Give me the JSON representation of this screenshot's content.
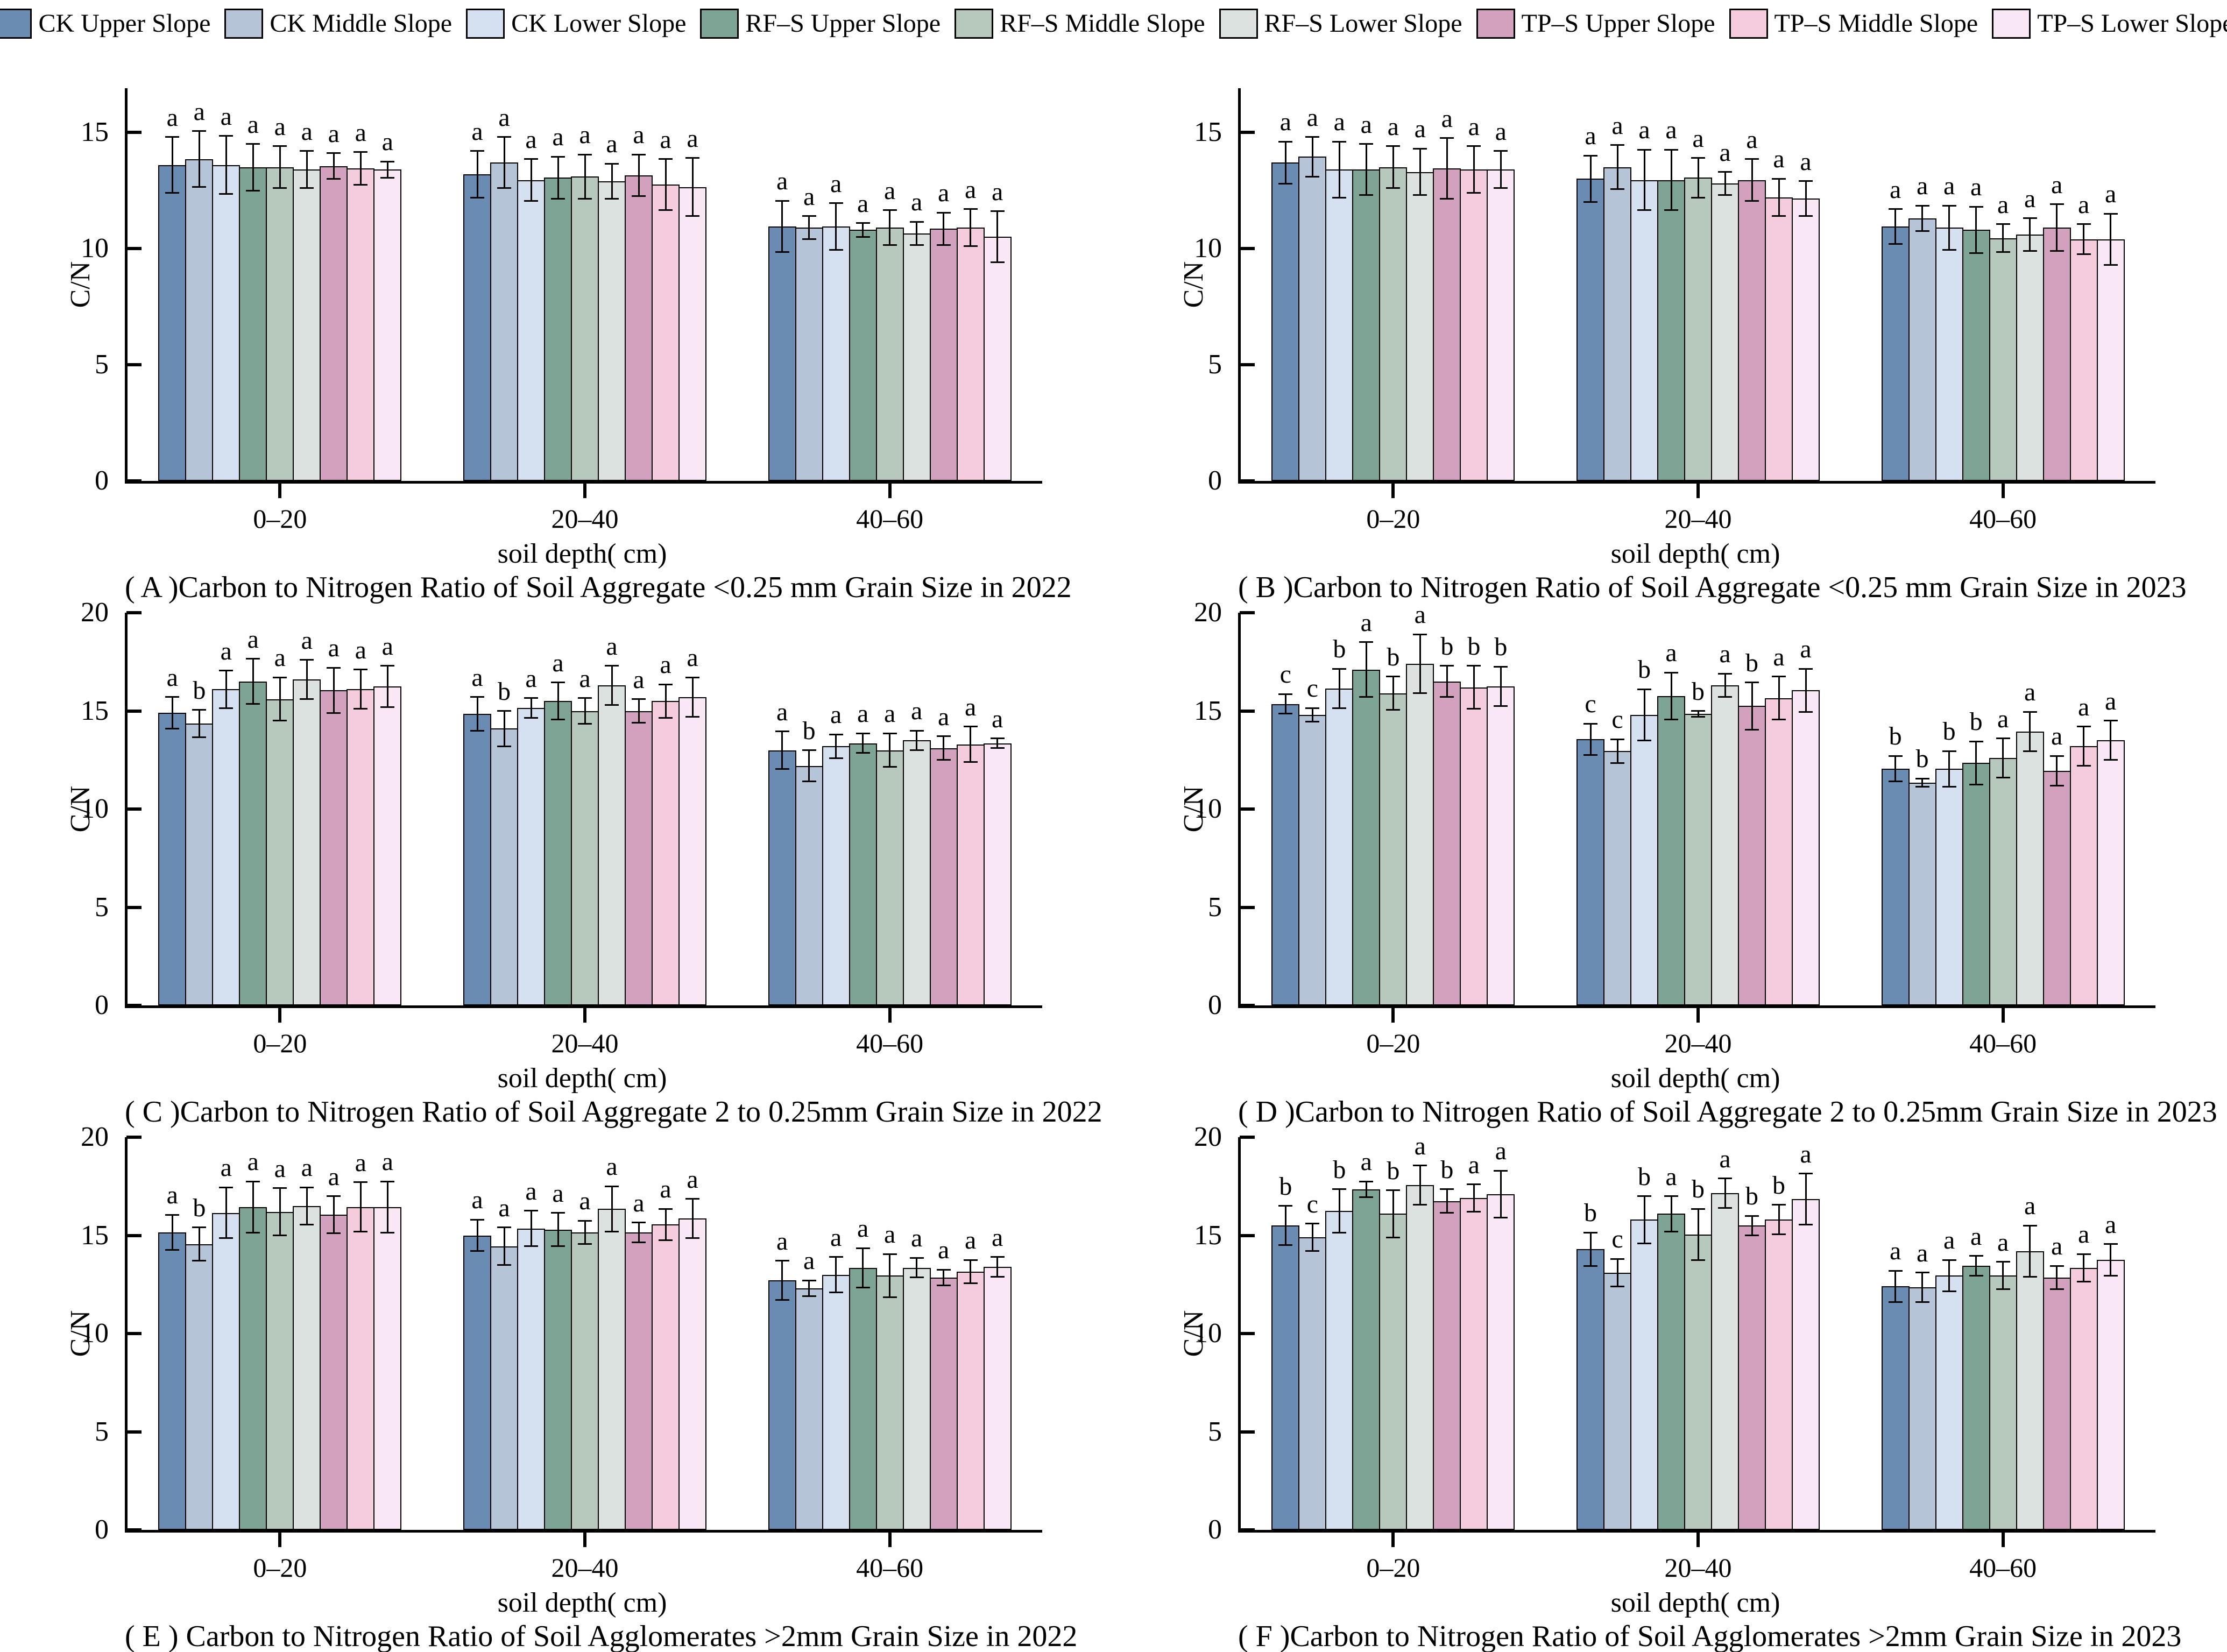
{
  "figure": {
    "background": "#ffffff",
    "bar_edge_color": "#000000",
    "ylabel": "C/N",
    "xlabel": "soil depth( cm)"
  },
  "legend": {
    "items": [
      {
        "label": "CK Upper Slope",
        "color": "#6a8cb2"
      },
      {
        "label": "CK Middle Slope",
        "color": "#b5c4d7"
      },
      {
        "label": "CK Lower Slope",
        "color": "#d5e1f0"
      },
      {
        "label": "RF–S Upper Slope",
        "color": "#7da495"
      },
      {
        "label": "RF–S Middle Slope",
        "color": "#b6c9bc"
      },
      {
        "label": "RF–S Lower Slope",
        "color": "#dce2e0"
      },
      {
        "label": "TP–S Upper Slope",
        "color": "#d2a1be"
      },
      {
        "label": "TP–S Middle Slope",
        "color": "#f5ccdd"
      },
      {
        "label": "TP–S Lower Slope",
        "color": "#f9e7f5"
      }
    ]
  },
  "chart_data": {
    "type": "bar",
    "grouped": true,
    "legend_position": "top",
    "grid": false,
    "series_labels": [
      "CK Upper Slope",
      "CK Middle Slope",
      "CK Lower Slope",
      "RF–S Upper Slope",
      "RF–S Middle Slope",
      "RF–S Lower Slope",
      "TP–S Upper Slope",
      "TP–S Middle Slope",
      "TP–S Lower Slope"
    ],
    "categories": [
      "0–20",
      "20–40",
      "40–60"
    ],
    "panels": [
      {
        "id": "A",
        "title": "( A )Carbon to Nitrogen Ratio of Soil Aggregate <0.25 mm Grain Size in 2022",
        "xlabel": "soil depth( cm)",
        "ylabel": "C/N",
        "row": 1,
        "ylim": [
          0,
          16.9
        ],
        "yticks": [
          0,
          5,
          10,
          15
        ],
        "groups": [
          "0–20",
          "20–40",
          "40–60"
        ],
        "values": [
          [
            13.6,
            13.85,
            13.6,
            13.5,
            13.5,
            13.4,
            13.55,
            13.45,
            13.4
          ],
          [
            13.2,
            13.7,
            12.95,
            13.05,
            13.1,
            12.9,
            13.15,
            12.75,
            12.65
          ],
          [
            10.95,
            10.9,
            10.95,
            10.8,
            10.9,
            10.65,
            10.85,
            10.9,
            10.5
          ]
        ],
        "errors": [
          [
            1.2,
            1.2,
            1.25,
            1.0,
            0.9,
            0.8,
            0.55,
            0.7,
            0.35
          ],
          [
            1.0,
            1.1,
            0.9,
            0.9,
            0.95,
            0.75,
            0.9,
            1.1,
            1.25
          ],
          [
            1.1,
            0.5,
            1.0,
            0.3,
            0.75,
            0.5,
            0.7,
            0.8,
            1.1
          ]
        ],
        "letters": [
          [
            "a",
            "a",
            "a",
            "a",
            "a",
            "a",
            "a",
            "a",
            "a"
          ],
          [
            "a",
            "a",
            "a",
            "a",
            "a",
            "a",
            "a",
            "a",
            "a"
          ],
          [
            "a",
            "a",
            "a",
            "a",
            "a",
            "a",
            "a",
            "a",
            "a"
          ]
        ]
      },
      {
        "id": "B",
        "title": "( B )Carbon to Nitrogen Ratio of Soil Aggregate <0.25 mm Grain Size in 2023",
        "xlabel": "soil depth( cm)",
        "ylabel": "C/N",
        "row": 1,
        "ylim": [
          0,
          16.9
        ],
        "yticks": [
          0,
          5,
          10,
          15
        ],
        "groups": [
          "0–20",
          "20–40",
          "40–60"
        ],
        "values": [
          [
            13.7,
            13.95,
            13.4,
            13.4,
            13.5,
            13.3,
            13.45,
            13.4,
            13.4
          ],
          [
            13.0,
            13.5,
            12.95,
            12.95,
            13.05,
            12.8,
            12.95,
            12.2,
            12.15
          ],
          [
            10.95,
            11.3,
            10.9,
            10.8,
            10.45,
            10.6,
            10.9,
            10.4,
            10.4
          ]
        ],
        "errors": [
          [
            0.9,
            0.85,
            1.2,
            1.1,
            0.9,
            1.0,
            1.3,
            1.0,
            0.8
          ],
          [
            1.0,
            0.95,
            1.3,
            1.3,
            0.85,
            0.5,
            0.9,
            0.8,
            0.75
          ],
          [
            0.75,
            0.55,
            0.95,
            1.0,
            0.6,
            0.7,
            1.0,
            0.65,
            1.1
          ]
        ],
        "letters": [
          [
            "a",
            "a",
            "a",
            "a",
            "a",
            "a",
            "a",
            "a",
            "a"
          ],
          [
            "a",
            "a",
            "a",
            "a",
            "a",
            "a",
            "a",
            "a",
            "a"
          ],
          [
            "a",
            "a",
            "a",
            "a",
            "a",
            "a",
            "a",
            "a",
            "a"
          ]
        ]
      },
      {
        "id": "C",
        "title": "( C )Carbon to Nitrogen Ratio of Soil Aggregate 2 to 0.25mm Grain Size in 2022",
        "xlabel": "soil depth( cm)",
        "ylabel": "C/N",
        "row": 2,
        "ylim": [
          0,
          20
        ],
        "yticks": [
          0,
          5,
          10,
          15,
          20
        ],
        "groups": [
          "0–20",
          "20–40",
          "40–60"
        ],
        "values": [
          [
            14.9,
            14.35,
            16.1,
            16.5,
            15.6,
            16.6,
            16.05,
            16.1,
            16.25
          ],
          [
            14.85,
            14.1,
            15.15,
            15.5,
            15.0,
            16.3,
            15.0,
            15.5,
            15.7
          ],
          [
            13.0,
            12.2,
            13.2,
            13.35,
            13.0,
            13.5,
            13.1,
            13.3,
            13.35
          ]
        ],
        "errors": [
          [
            0.8,
            0.7,
            0.95,
            1.15,
            1.1,
            1.0,
            1.15,
            1.0,
            1.05
          ],
          [
            0.85,
            0.9,
            0.5,
            0.95,
            0.65,
            1.0,
            0.6,
            0.85,
            1.0
          ],
          [
            0.95,
            0.8,
            0.6,
            0.5,
            0.85,
            0.5,
            0.6,
            0.9,
            0.25
          ]
        ],
        "letters": [
          [
            "a",
            "b",
            "a",
            "a",
            "a",
            "a",
            "a",
            "a",
            "a"
          ],
          [
            "a",
            "b",
            "a",
            "a",
            "a",
            "a",
            "a",
            "a",
            "a"
          ],
          [
            "a",
            "b",
            "a",
            "a",
            "a",
            "a",
            "a",
            "a",
            "a"
          ]
        ]
      },
      {
        "id": "D",
        "title": "( D )Carbon to Nitrogen Ratio of Soil Aggregate 2 to 0.25mm Grain Size in 2023",
        "xlabel": "soil depth( cm)",
        "ylabel": "C/N",
        "row": 2,
        "ylim": [
          0,
          20
        ],
        "yticks": [
          0,
          5,
          10,
          15,
          20
        ],
        "groups": [
          "0–20",
          "20–40",
          "40–60"
        ],
        "values": [
          [
            15.35,
            14.8,
            16.15,
            17.1,
            15.9,
            17.4,
            16.5,
            16.2,
            16.25
          ],
          [
            13.55,
            12.95,
            14.8,
            15.75,
            14.85,
            16.3,
            15.25,
            15.65,
            16.05
          ],
          [
            12.05,
            11.35,
            12.05,
            12.35,
            12.6,
            13.95,
            11.95,
            13.2,
            13.5
          ]
        ],
        "errors": [
          [
            0.5,
            0.35,
            1.0,
            1.4,
            0.85,
            1.5,
            0.8,
            1.1,
            1.0
          ],
          [
            0.8,
            0.6,
            1.3,
            1.2,
            0.15,
            0.6,
            1.2,
            1.1,
            1.1
          ],
          [
            0.65,
            0.2,
            0.9,
            1.1,
            1.0,
            1.0,
            0.75,
            1.0,
            1.0
          ]
        ],
        "letters": [
          [
            "c",
            "c",
            "b",
            "a",
            "b",
            "a",
            "b",
            "b",
            "b"
          ],
          [
            "c",
            "c",
            "b",
            "a",
            "b",
            "a",
            "b",
            "a",
            "a"
          ],
          [
            "b",
            "b",
            "b",
            "b",
            "a",
            "a",
            "a",
            "a",
            "a"
          ]
        ]
      },
      {
        "id": "E",
        "title": "( E ) Carbon to Nitrogen Ratio of Soil Agglomerates >2mm Grain Size in 2022",
        "xlabel": "soil depth( cm)",
        "ylabel": "C/N",
        "row": 3,
        "ylim": [
          0,
          20
        ],
        "yticks": [
          0,
          5,
          10,
          15,
          20
        ],
        "groups": [
          "0–20",
          "20–40",
          "40–60"
        ],
        "values": [
          [
            15.15,
            14.55,
            16.15,
            16.45,
            16.2,
            16.5,
            16.05,
            16.45,
            16.45
          ],
          [
            15.0,
            14.45,
            15.35,
            15.3,
            15.15,
            16.35,
            15.15,
            15.55,
            15.85
          ],
          [
            12.7,
            12.3,
            13.0,
            13.35,
            12.95,
            13.35,
            12.85,
            13.15,
            13.4
          ]
        ],
        "errors": [
          [
            0.9,
            0.85,
            1.3,
            1.3,
            1.2,
            0.95,
            0.95,
            1.25,
            1.3
          ],
          [
            0.8,
            0.95,
            0.9,
            0.85,
            0.6,
            1.15,
            0.5,
            0.8,
            1.0
          ],
          [
            1.0,
            0.4,
            0.9,
            1.0,
            1.1,
            0.5,
            0.4,
            0.6,
            0.5
          ]
        ],
        "letters": [
          [
            "a",
            "b",
            "a",
            "a",
            "a",
            "a",
            "a",
            "a",
            "a"
          ],
          [
            "a",
            "a",
            "a",
            "a",
            "a",
            "a",
            "a",
            "a",
            "a"
          ],
          [
            "a",
            "a",
            "a",
            "a",
            "a",
            "a",
            "a",
            "a",
            "a"
          ]
        ]
      },
      {
        "id": "F",
        "title": "( F )Carbon to Nitrogen Ratio of Soil Agglomerates >2mm Grain Size in 2023",
        "xlabel": "soil depth( cm)",
        "ylabel": "C/N",
        "row": 3,
        "ylim": [
          0,
          20
        ],
        "yticks": [
          0,
          5,
          10,
          15,
          20
        ],
        "groups": [
          "0–20",
          "20–40",
          "40–60"
        ],
        "values": [
          [
            15.5,
            14.9,
            16.25,
            17.35,
            16.1,
            17.55,
            16.75,
            16.9,
            17.1
          ],
          [
            14.3,
            13.1,
            15.8,
            16.1,
            15.05,
            17.15,
            15.5,
            15.8,
            16.85
          ],
          [
            12.4,
            12.35,
            12.95,
            13.45,
            12.95,
            14.2,
            12.85,
            13.35,
            13.75
          ]
        ],
        "errors": [
          [
            1.0,
            0.7,
            1.1,
            0.4,
            1.2,
            1.0,
            0.6,
            0.7,
            1.2
          ],
          [
            0.85,
            0.7,
            1.2,
            0.9,
            1.3,
            0.75,
            0.5,
            0.75,
            1.3
          ],
          [
            0.8,
            0.75,
            0.8,
            0.5,
            0.7,
            1.3,
            0.6,
            0.7,
            0.8
          ]
        ],
        "letters": [
          [
            "b",
            "c",
            "b",
            "a",
            "b",
            "a",
            "b",
            "a",
            "a"
          ],
          [
            "b",
            "c",
            "b",
            "a",
            "b",
            "a",
            "b",
            "b",
            "a"
          ],
          [
            "a",
            "a",
            "a",
            "a",
            "a",
            "a",
            "a",
            "a",
            "a"
          ]
        ]
      }
    ]
  }
}
